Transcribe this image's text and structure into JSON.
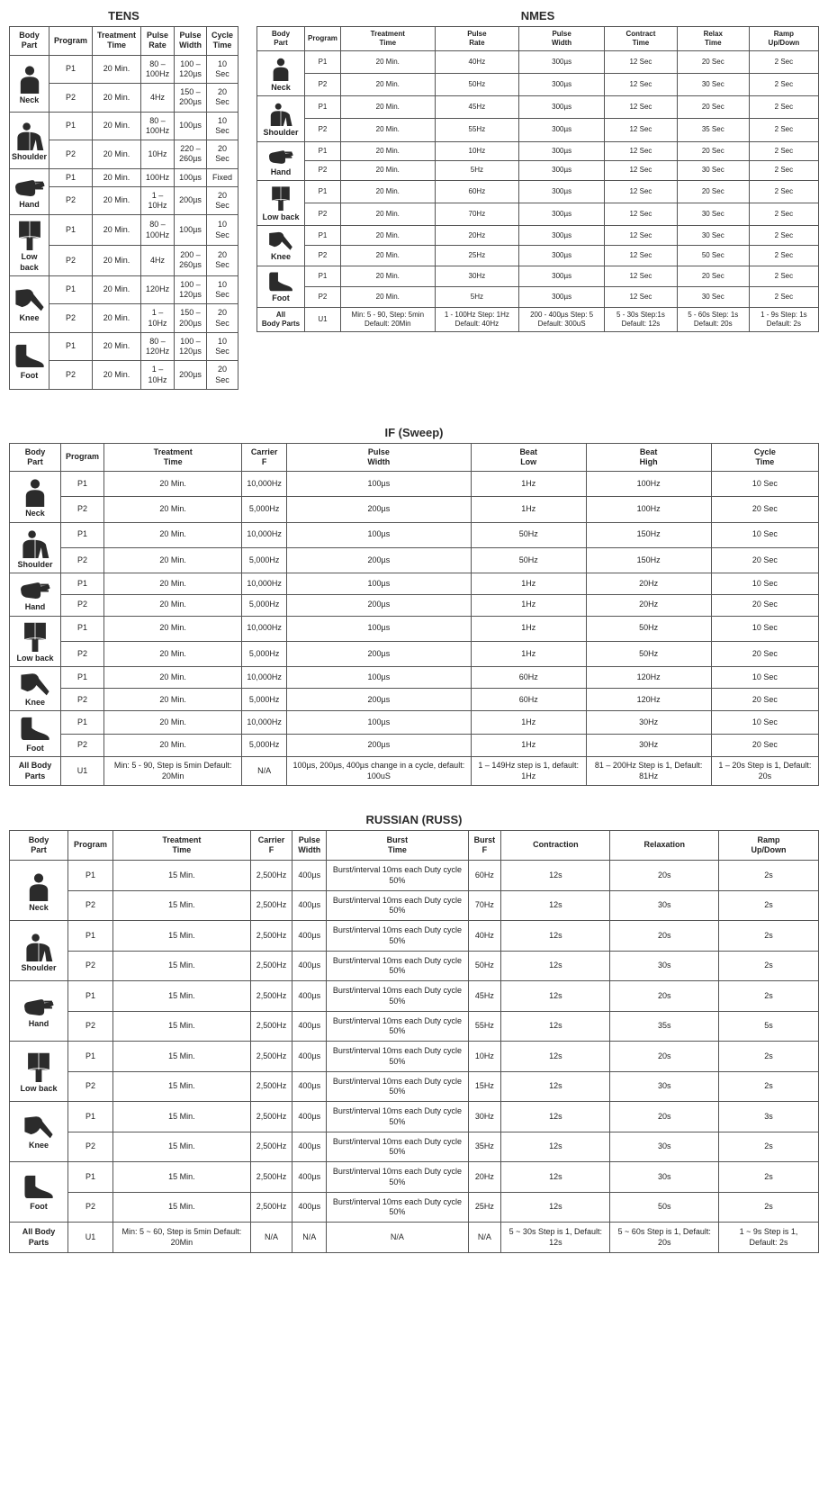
{
  "colors": {
    "icon": "#2b2b2b",
    "border": "#555555",
    "text": "#222222"
  },
  "bodyparts": [
    "Neck",
    "Shoulder",
    "Hand",
    "Low back",
    "Knee",
    "Foot"
  ],
  "allparts_label": "All Body Parts",
  "tens": {
    "title": "TENS",
    "headers": [
      "Body Part",
      "Program",
      "Treatment Time",
      "Pulse Rate",
      "Pulse Width",
      "Cycle Time"
    ],
    "rows": [
      [
        "P1",
        "20 Min.",
        "80 – 100Hz",
        "100 – 120µs",
        "10 Sec"
      ],
      [
        "P2",
        "20 Min.",
        "4Hz",
        "150 – 200µs",
        "20 Sec"
      ],
      [
        "P1",
        "20 Min.",
        "80 – 100Hz",
        "100µs",
        "10 Sec"
      ],
      [
        "P2",
        "20 Min.",
        "10Hz",
        "220 – 260µs",
        "20 Sec"
      ],
      [
        "P1",
        "20 Min.",
        "100Hz",
        "100µs",
        "Fixed"
      ],
      [
        "P2",
        "20 Min.",
        "1 – 10Hz",
        "200µs",
        "20 Sec"
      ],
      [
        "P1",
        "20 Min.",
        "80 – 100Hz",
        "100µs",
        "10 Sec"
      ],
      [
        "P2",
        "20 Min.",
        "4Hz",
        "200 – 260µs",
        "20 Sec"
      ],
      [
        "P1",
        "20 Min.",
        "120Hz",
        "100 – 120µs",
        "10 Sec"
      ],
      [
        "P2",
        "20 Min.",
        "1 – 10Hz",
        "150 – 200µs",
        "20 Sec"
      ],
      [
        "P1",
        "20 Min.",
        "80 – 120Hz",
        "100 – 120µs",
        "10 Sec"
      ],
      [
        "P2",
        "20 Min.",
        "1 – 10Hz",
        "200µs",
        "20 Sec"
      ]
    ]
  },
  "nmes": {
    "title": "NMES",
    "headers": [
      "Body Part",
      "Program",
      "Treatment Time",
      "Pulse Rate",
      "Pulse Width",
      "Contract Time",
      "Relax Time",
      "Ramp Up/Down"
    ],
    "rows": [
      [
        "P1",
        "20 Min.",
        "40Hz",
        "300µs",
        "12 Sec",
        "20 Sec",
        "2 Sec"
      ],
      [
        "P2",
        "20 Min.",
        "50Hz",
        "300µs",
        "12 Sec",
        "30 Sec",
        "2 Sec"
      ],
      [
        "P1",
        "20 Min.",
        "45Hz",
        "300µs",
        "12 Sec",
        "20 Sec",
        "2 Sec"
      ],
      [
        "P2",
        "20 Min.",
        "55Hz",
        "300µs",
        "12 Sec",
        "35 Sec",
        "2 Sec"
      ],
      [
        "P1",
        "20 Min.",
        "10Hz",
        "300µs",
        "12 Sec",
        "20 Sec",
        "2 Sec"
      ],
      [
        "P2",
        "20 Min.",
        "5Hz",
        "300µs",
        "12 Sec",
        "30 Sec",
        "2 Sec"
      ],
      [
        "P1",
        "20 Min.",
        "60Hz",
        "300µs",
        "12 Sec",
        "20 Sec",
        "2 Sec"
      ],
      [
        "P2",
        "20 Min.",
        "70Hz",
        "300µs",
        "12 Sec",
        "30 Sec",
        "2 Sec"
      ],
      [
        "P1",
        "20 Min.",
        "20Hz",
        "300µs",
        "12 Sec",
        "30 Sec",
        "2 Sec"
      ],
      [
        "P2",
        "20 Min.",
        "25Hz",
        "300µs",
        "12 Sec",
        "50 Sec",
        "2 Sec"
      ],
      [
        "P1",
        "20 Min.",
        "30Hz",
        "300µs",
        "12 Sec",
        "20 Sec",
        "2 Sec"
      ],
      [
        "P2",
        "20 Min.",
        "5Hz",
        "300µs",
        "12 Sec",
        "30 Sec",
        "2 Sec"
      ]
    ],
    "u1": [
      "U1",
      "Min: 5 - 90, Step: 5min Default: 20Min",
      "1 - 100Hz Step: 1Hz Default: 40Hz",
      "200 - 400µs Step: 5 Default: 300uS",
      "5 - 30s Step:1s Default: 12s",
      "5 - 60s Step: 1s Default: 20s",
      "1 - 9s Step: 1s Default: 2s"
    ]
  },
  "ifsweep": {
    "title": "IF (Sweep)",
    "headers": [
      "Body Part",
      "Program",
      "Treatment Time",
      "Carrier F",
      "Pulse Width",
      "Beat Low",
      "Beat High",
      "Cycle Time"
    ],
    "rows": [
      [
        "P1",
        "20 Min.",
        "10,000Hz",
        "100µs",
        "1Hz",
        "100Hz",
        "10 Sec"
      ],
      [
        "P2",
        "20 Min.",
        "5,000Hz",
        "200µs",
        "1Hz",
        "100Hz",
        "20 Sec"
      ],
      [
        "P1",
        "20 Min.",
        "10,000Hz",
        "100µs",
        "50Hz",
        "150Hz",
        "10 Sec"
      ],
      [
        "P2",
        "20 Min.",
        "5,000Hz",
        "200µs",
        "50Hz",
        "150Hz",
        "20 Sec"
      ],
      [
        "P1",
        "20 Min.",
        "10,000Hz",
        "100µs",
        "1Hz",
        "20Hz",
        "10 Sec"
      ],
      [
        "P2",
        "20 Min.",
        "5,000Hz",
        "200µs",
        "1Hz",
        "20Hz",
        "20 Sec"
      ],
      [
        "P1",
        "20 Min.",
        "10,000Hz",
        "100µs",
        "1Hz",
        "50Hz",
        "10 Sec"
      ],
      [
        "P2",
        "20 Min.",
        "5,000Hz",
        "200µs",
        "1Hz",
        "50Hz",
        "20 Sec"
      ],
      [
        "P1",
        "20 Min.",
        "10,000Hz",
        "100µs",
        "60Hz",
        "120Hz",
        "10 Sec"
      ],
      [
        "P2",
        "20 Min.",
        "5,000Hz",
        "200µs",
        "60Hz",
        "120Hz",
        "20 Sec"
      ],
      [
        "P1",
        "20 Min.",
        "10,000Hz",
        "100µs",
        "1Hz",
        "30Hz",
        "10 Sec"
      ],
      [
        "P2",
        "20 Min.",
        "5,000Hz",
        "200µs",
        "1Hz",
        "30Hz",
        "20 Sec"
      ]
    ],
    "u1": [
      "U1",
      "Min: 5 - 90, Step is 5min Default: 20Min",
      "N/A",
      "100µs, 200µs, 400µs change in a cycle, default: 100uS",
      "1 – 149Hz step is 1, default: 1Hz",
      "81 – 200Hz Step is 1, Default: 81Hz",
      "1 – 20s Step is 1, Default: 20s"
    ]
  },
  "russ": {
    "title": "RUSSIAN (RUSS)",
    "headers": [
      "Body Part",
      "Program",
      "Treatment Time",
      "Carrier F",
      "Pulse Width",
      "Burst Time",
      "Burst F",
      "Contraction",
      "Relaxation",
      "Ramp Up/Down"
    ],
    "burst_text": "Burst/interval 10ms each Duty cycle 50%",
    "rows": [
      [
        "P1",
        "15 Min.",
        "2,500Hz",
        "400µs",
        "60Hz",
        "12s",
        "20s",
        "2s"
      ],
      [
        "P2",
        "15 Min.",
        "2,500Hz",
        "400µs",
        "70Hz",
        "12s",
        "30s",
        "2s"
      ],
      [
        "P1",
        "15 Min.",
        "2,500Hz",
        "400µs",
        "40Hz",
        "12s",
        "20s",
        "2s"
      ],
      [
        "P2",
        "15 Min.",
        "2,500Hz",
        "400µs",
        "50Hz",
        "12s",
        "30s",
        "2s"
      ],
      [
        "P1",
        "15 Min.",
        "2,500Hz",
        "400µs",
        "45Hz",
        "12s",
        "20s",
        "2s"
      ],
      [
        "P2",
        "15 Min.",
        "2,500Hz",
        "400µs",
        "55Hz",
        "12s",
        "35s",
        "5s"
      ],
      [
        "P1",
        "15 Min.",
        "2,500Hz",
        "400µs",
        "10Hz",
        "12s",
        "20s",
        "2s"
      ],
      [
        "P2",
        "15 Min.",
        "2,500Hz",
        "400µs",
        "15Hz",
        "12s",
        "30s",
        "2s"
      ],
      [
        "P1",
        "15 Min.",
        "2,500Hz",
        "400µs",
        "30Hz",
        "12s",
        "20s",
        "3s"
      ],
      [
        "P2",
        "15 Min.",
        "2,500Hz",
        "400µs",
        "35Hz",
        "12s",
        "30s",
        "2s"
      ],
      [
        "P1",
        "15 Min.",
        "2,500Hz",
        "400µs",
        "20Hz",
        "12s",
        "30s",
        "2s"
      ],
      [
        "P2",
        "15 Min.",
        "2,500Hz",
        "400µs",
        "25Hz",
        "12s",
        "50s",
        "2s"
      ]
    ],
    "u1": [
      "U1",
      "Min: 5 ~ 60, Step is 5min Default: 20Min",
      "N/A",
      "N/A",
      "N/A",
      "N/A",
      "5 ~ 30s Step is 1, Default: 12s",
      "5 ~ 60s Step is 1, Default: 20s",
      "1 ~ 9s Step is 1, Default: 2s"
    ]
  }
}
